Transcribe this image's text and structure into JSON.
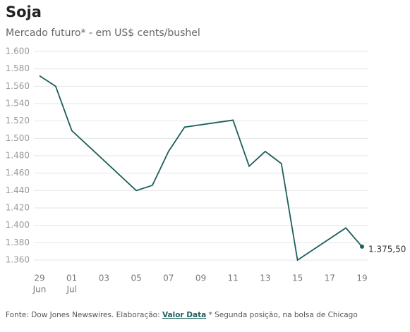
{
  "chart_data": {
    "type": "line",
    "title": "Soja",
    "subtitle": "Mercado futuro* - em US$ cents/bushel",
    "x": [
      "06-29",
      "06-30",
      "07-01",
      "07-05",
      "07-06",
      "07-07",
      "07-08",
      "07-11",
      "07-12",
      "07-13",
      "07-14",
      "07-15",
      "07-18",
      "07-19"
    ],
    "series": [
      {
        "name": "Soja",
        "color": "#1d5f5b",
        "values": [
          1572,
          1560,
          1509,
          1440,
          1446,
          1485,
          1513,
          1521,
          1468,
          1485,
          1471,
          1360,
          1397,
          1375.5
        ],
        "value_labels": [
          null,
          null,
          null,
          null,
          null,
          null,
          null,
          null,
          null,
          null,
          null,
          null,
          null,
          "1.375,50"
        ]
      }
    ],
    "xlim": [
      "06-29",
      "07-19"
    ],
    "xticks": [
      {
        "value": "06-29",
        "label": "29",
        "month": "Jun"
      },
      {
        "value": "07-01",
        "label": "01",
        "month": "Jul"
      },
      {
        "value": "07-03",
        "label": "03"
      },
      {
        "value": "07-05",
        "label": "05"
      },
      {
        "value": "07-07",
        "label": "07"
      },
      {
        "value": "07-09",
        "label": "09"
      },
      {
        "value": "07-11",
        "label": "11"
      },
      {
        "value": "07-13",
        "label": "13"
      },
      {
        "value": "07-15",
        "label": "15"
      },
      {
        "value": "07-17",
        "label": "17"
      },
      {
        "value": "07-19",
        "label": "19"
      }
    ],
    "ylim": [
      1360,
      1600
    ],
    "yticks": [
      {
        "value": 1360,
        "label": "1.360"
      },
      {
        "value": 1380,
        "label": "1.380"
      },
      {
        "value": 1400,
        "label": "1.400"
      },
      {
        "value": 1420,
        "label": "1.420"
      },
      {
        "value": 1440,
        "label": "1.440"
      },
      {
        "value": 1460,
        "label": "1.460"
      },
      {
        "value": 1480,
        "label": "1.480"
      },
      {
        "value": 1500,
        "label": "1.500"
      },
      {
        "value": 1520,
        "label": "1.520"
      },
      {
        "value": 1540,
        "label": "1.540"
      },
      {
        "value": 1560,
        "label": "1.560"
      },
      {
        "value": 1580,
        "label": "1.580"
      },
      {
        "value": 1600,
        "label": "1.600"
      }
    ],
    "grid": true,
    "source": {
      "prefix": "Fonte: Dow Jones Newswires. Elaboração: ",
      "link": "Valor Data",
      "suffix": " * Segunda posição, na bolsa de Chicago"
    }
  }
}
